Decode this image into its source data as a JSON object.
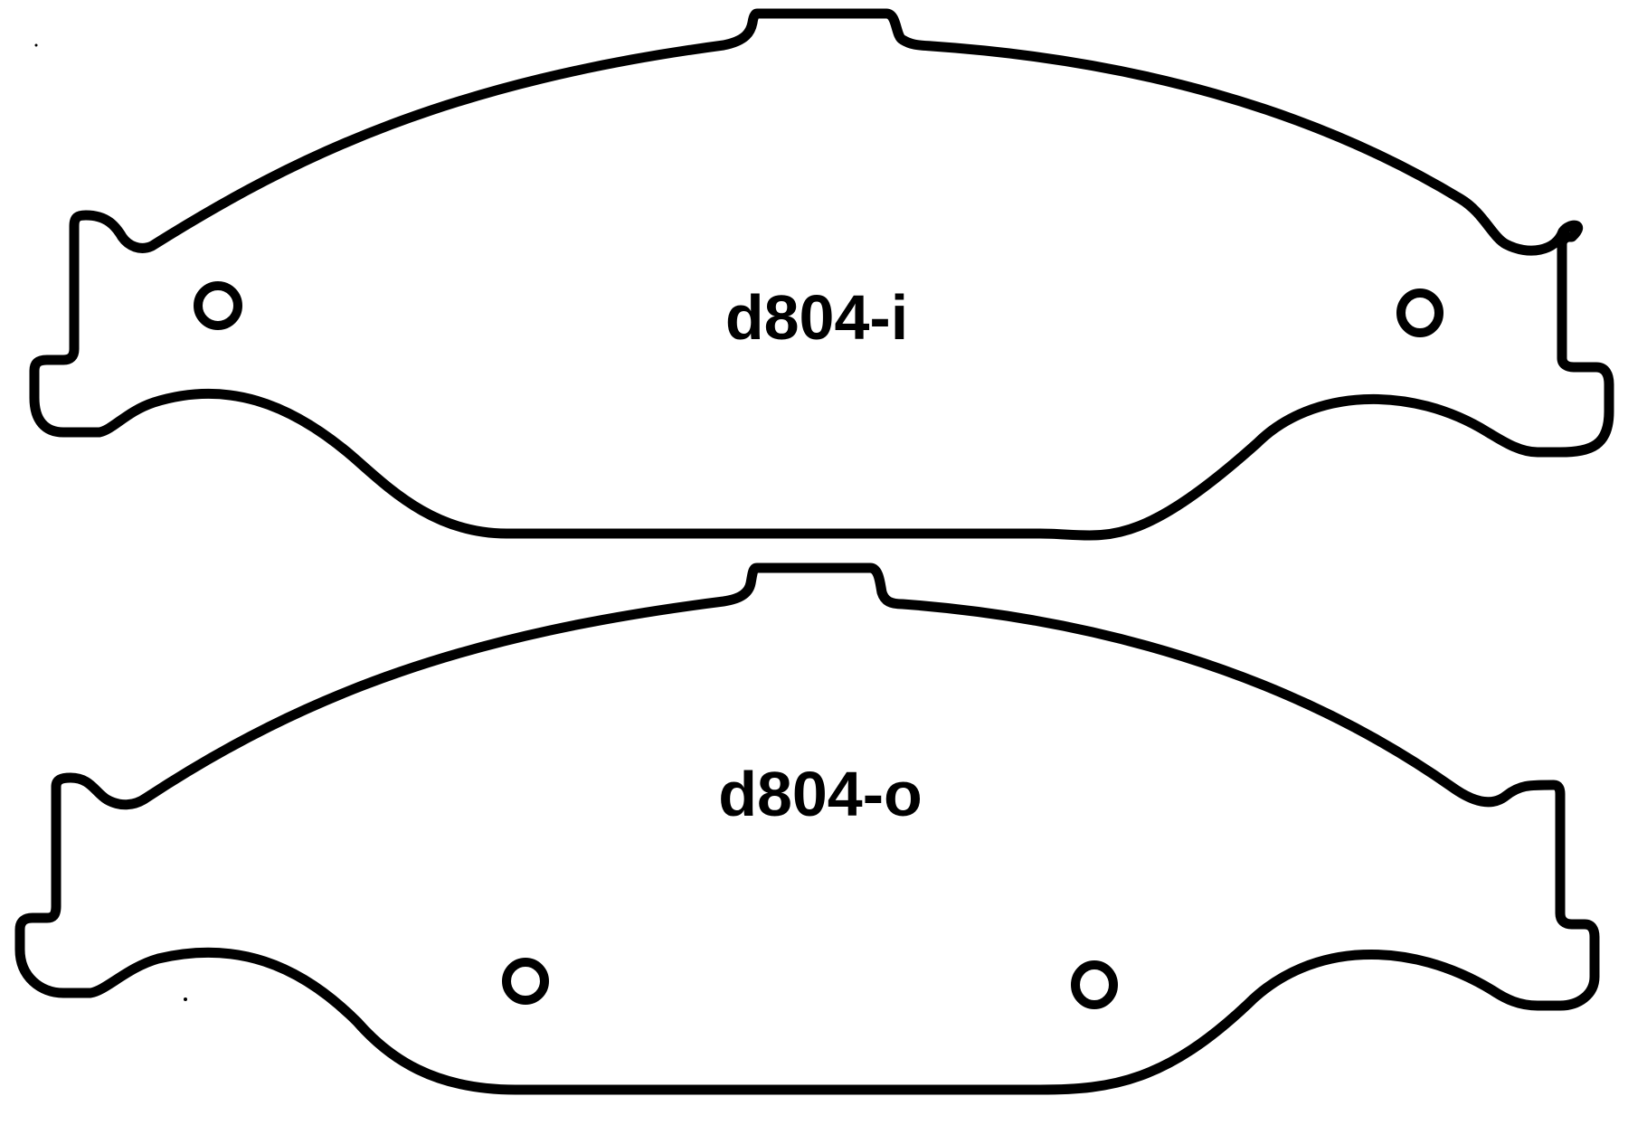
{
  "colors": {
    "background": "#ffffff",
    "line": "#000000"
  },
  "pads": [
    {
      "label": "d804-i"
    },
    {
      "label": "d804-o"
    }
  ]
}
